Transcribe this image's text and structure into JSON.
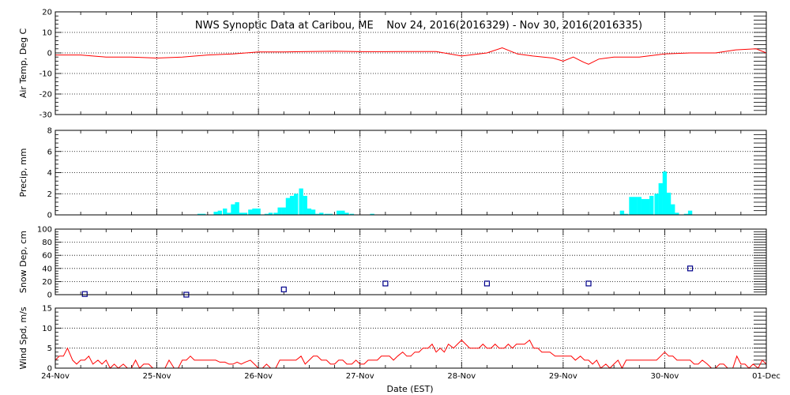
{
  "title": "NWS Synoptic Data at Caribou, ME    Nov 24, 2016(2016329) - Nov 30, 2016(2016335)",
  "xlabel": "Date (EST)",
  "x_ticks": [
    "24-Nov",
    "25-Nov",
    "26-Nov",
    "27-Nov",
    "28-Nov",
    "29-Nov",
    "30-Nov",
    "01-Dec"
  ],
  "colors": {
    "temp": "#ff0000",
    "precip": "#00ffff",
    "snow": "#00008b",
    "wind": "#ff0000",
    "axes": "#000000"
  },
  "chart_data": [
    {
      "type": "line",
      "ylabel": "Air Temp, Deg C",
      "ylim": [
        -30,
        20
      ],
      "yticks": [
        -30,
        -20,
        -10,
        0,
        10,
        20
      ],
      "grid": true,
      "x_unit": "days since 24-Nov 00:00",
      "series": [
        {
          "x": [
            0,
            0.25,
            0.5,
            0.75,
            1.0,
            1.25,
            1.5,
            1.75,
            2.0,
            2.25,
            2.5,
            2.75,
            3.0,
            3.25,
            3.5,
            3.75,
            4.0,
            4.25,
            4.4,
            4.55,
            4.7,
            4.9,
            5.0,
            5.1,
            5.2,
            5.25,
            5.35,
            5.5,
            5.75,
            6.0,
            6.25,
            6.5,
            6.7,
            6.9,
            7.0
          ],
          "y": [
            -1,
            -1,
            -2,
            -2,
            -2.5,
            -2,
            -1,
            -0.5,
            0.5,
            0.5,
            0.7,
            0.8,
            0.6,
            0.6,
            0.7,
            0.7,
            -1.5,
            0,
            2.5,
            -0.5,
            -1.5,
            -2.5,
            -4,
            -2,
            -4.5,
            -5.5,
            -3,
            -2,
            -2,
            -0.5,
            0,
            0,
            1.5,
            2,
            0
          ]
        }
      ]
    },
    {
      "type": "bar",
      "ylabel": "Precip, mm",
      "ylim": [
        0,
        8
      ],
      "yticks": [
        0,
        2,
        4,
        6,
        8
      ],
      "grid": true,
      "x_unit": "days since 24-Nov 00:00",
      "series": [
        {
          "x": [
            1.42,
            1.46,
            1.5,
            1.54,
            1.58,
            1.62,
            1.67,
            1.71,
            1.75,
            1.79,
            1.83,
            1.87,
            1.92,
            1.96,
            2.0,
            2.04,
            2.08,
            2.12,
            2.17,
            2.21,
            2.25,
            2.29,
            2.33,
            2.37,
            2.42,
            2.46,
            2.5,
            2.54,
            2.58,
            2.62,
            2.67,
            2.71,
            2.75,
            2.79,
            2.83,
            2.87,
            2.92,
            2.96,
            3.0,
            3.04,
            3.08,
            3.12,
            3.17,
            3.21,
            3.25,
            3.29,
            3.33,
            3.37,
            5.58,
            5.62,
            5.67,
            5.71,
            5.75,
            5.79,
            5.83,
            5.87,
            5.92,
            5.96,
            6.0,
            6.04,
            6.08,
            6.12,
            6.17,
            6.21,
            6.25
          ],
          "y": [
            0.1,
            0.1,
            0,
            0,
            0.3,
            0.4,
            0.6,
            0.2,
            1.0,
            1.2,
            0.2,
            0.2,
            0.5,
            0.6,
            0.6,
            0,
            0.1,
            0.2,
            0.2,
            0.7,
            0.7,
            1.6,
            1.8,
            2.0,
            2.5,
            1.8,
            0.6,
            0.5,
            0.1,
            0.2,
            0.1,
            0.1,
            0,
            0.4,
            0.4,
            0.2,
            0.1,
            0,
            0,
            0,
            0,
            0.1,
            0,
            0,
            0,
            0,
            0,
            0,
            0.4,
            0.1,
            1.7,
            1.7,
            1.7,
            1.5,
            1.5,
            1.8,
            2.0,
            3.0,
            4.1,
            2.1,
            1.0,
            0.2,
            0,
            0.1,
            0.4
          ]
        }
      ]
    },
    {
      "type": "scatter",
      "ylabel": "Snow Dep, cm",
      "ylim": [
        0,
        100
      ],
      "yticks": [
        0,
        20,
        40,
        60,
        80,
        100
      ],
      "grid": true,
      "x_unit": "days since 24-Nov 00:00",
      "series": [
        {
          "x": [
            0.29,
            1.29,
            2.25,
            3.25,
            4.25,
            5.25,
            6.25
          ],
          "y": [
            1,
            0,
            8,
            17,
            17,
            17,
            40
          ]
        }
      ]
    },
    {
      "type": "line",
      "ylabel": "Wind Spd, m/s",
      "ylim": [
        0,
        15
      ],
      "yticks": [
        0,
        5,
        10,
        15
      ],
      "grid": true,
      "x_unit": "days since 24-Nov 00:00",
      "series": [
        {
          "x": [
            0,
            0.04,
            0.08,
            0.12,
            0.17,
            0.21,
            0.25,
            0.29,
            0.33,
            0.37,
            0.42,
            0.46,
            0.5,
            0.54,
            0.58,
            0.62,
            0.67,
            0.71,
            0.75,
            0.79,
            0.83,
            0.87,
            0.92,
            0.96,
            1.0,
            1.04,
            1.08,
            1.12,
            1.17,
            1.21,
            1.25,
            1.29,
            1.33,
            1.37,
            1.42,
            1.46,
            1.5,
            1.54,
            1.58,
            1.62,
            1.67,
            1.71,
            1.75,
            1.79,
            1.83,
            1.87,
            1.92,
            1.96,
            2.0,
            2.04,
            2.08,
            2.12,
            2.17,
            2.21,
            2.25,
            2.29,
            2.33,
            2.37,
            2.42,
            2.46,
            2.5,
            2.54,
            2.58,
            2.62,
            2.67,
            2.71,
            2.75,
            2.79,
            2.83,
            2.87,
            2.92,
            2.96,
            3.0,
            3.04,
            3.08,
            3.12,
            3.17,
            3.21,
            3.25,
            3.29,
            3.33,
            3.37,
            3.42,
            3.46,
            3.5,
            3.54,
            3.58,
            3.62,
            3.67,
            3.71,
            3.75,
            3.79,
            3.83,
            3.87,
            3.92,
            3.96,
            4.0,
            4.04,
            4.08,
            4.12,
            4.17,
            4.21,
            4.25,
            4.29,
            4.33,
            4.37,
            4.42,
            4.46,
            4.5,
            4.54,
            4.58,
            4.62,
            4.67,
            4.71,
            4.75,
            4.79,
            4.83,
            4.87,
            4.92,
            4.96,
            5.0,
            5.04,
            5.08,
            5.12,
            5.17,
            5.21,
            5.25,
            5.29,
            5.33,
            5.37,
            5.42,
            5.46,
            5.5,
            5.54,
            5.58,
            5.62,
            5.67,
            5.71,
            5.75,
            5.79,
            5.83,
            5.87,
            5.92,
            5.96,
            6.0,
            6.04,
            6.08,
            6.12,
            6.17,
            6.21,
            6.25,
            6.29,
            6.33,
            6.37,
            6.42,
            6.46,
            6.5,
            6.54,
            6.58,
            6.62,
            6.67,
            6.71,
            6.75,
            6.79,
            6.83,
            6.87,
            6.92,
            6.96,
            7.0
          ],
          "y": [
            2,
            3,
            3,
            5,
            2,
            1,
            2,
            2,
            3,
            1,
            2,
            1,
            2,
            0,
            1,
            0,
            1,
            0,
            0,
            2,
            0,
            1,
            1,
            0,
            0,
            0,
            0,
            2,
            0,
            0,
            2,
            2,
            3,
            2,
            2,
            2,
            2,
            2,
            2,
            1.5,
            1.5,
            1,
            1,
            1.5,
            1,
            1.5,
            2,
            1,
            0,
            0,
            1,
            0,
            0,
            2,
            2,
            2,
            2,
            2,
            3,
            1,
            2,
            3,
            3,
            2,
            2,
            1,
            1,
            2,
            2,
            1,
            1,
            2,
            1,
            1,
            2,
            2,
            2,
            3,
            3,
            3,
            2,
            3,
            4,
            3,
            3,
            4,
            4,
            5,
            5,
            6,
            4,
            5,
            4,
            6,
            5,
            6,
            7,
            6,
            5,
            5,
            5,
            6,
            5,
            5,
            6,
            5,
            5,
            6,
            5,
            6,
            6,
            6,
            7,
            5,
            5,
            4,
            4,
            4,
            3,
            3,
            3,
            3,
            3,
            2,
            3,
            2,
            2,
            1,
            2,
            0,
            1,
            0,
            1,
            2,
            0,
            2,
            2,
            2,
            2,
            2,
            2,
            2,
            2,
            3,
            4,
            3,
            3,
            2,
            2,
            2,
            2,
            1,
            1,
            2,
            1,
            0,
            0,
            1,
            1,
            0,
            0,
            3,
            1,
            1,
            0,
            1,
            0,
            2,
            1
          ]
        }
      ]
    }
  ]
}
